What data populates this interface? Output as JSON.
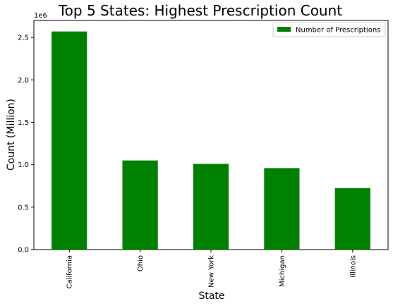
{
  "chart_data": {
    "type": "bar",
    "title": "Top 5 States: Highest Prescription Count",
    "xlabel": "State",
    "ylabel": "Count (Million)",
    "y_offset_label": "1e6",
    "categories": [
      "California",
      "Ohio",
      "New York",
      "Michigan",
      "Illinois"
    ],
    "series": [
      {
        "name": "Number of Prescriptions",
        "values": [
          2570000,
          1050000,
          1010000,
          960000,
          725000
        ],
        "color": "#008000"
      }
    ],
    "ylim": [
      0,
      2700000
    ],
    "yticks": [
      0,
      500000,
      1000000,
      1500000,
      2000000,
      2500000
    ],
    "ytick_labels": [
      "0.0",
      "0.5",
      "1.0",
      "1.5",
      "2.0",
      "2.5"
    ],
    "grid": false,
    "legend_position": "top-right"
  }
}
